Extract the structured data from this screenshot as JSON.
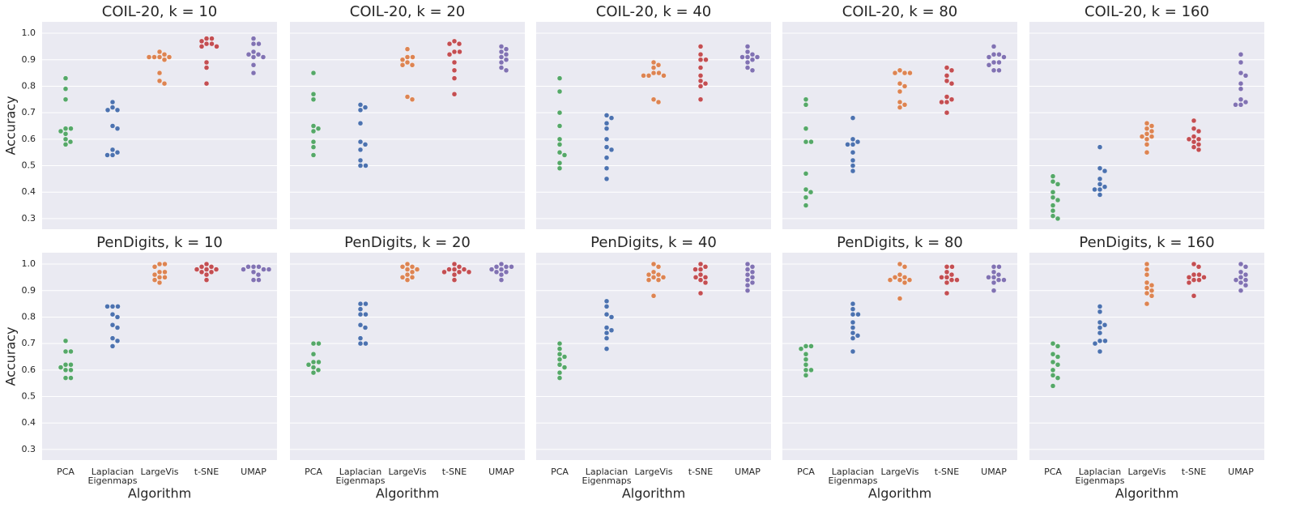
{
  "chart_data": [
    {
      "type": "swarm",
      "title": "COIL-20, k = 10",
      "ylabel": "Accuracy",
      "colors": [
        "#55a868",
        "#4c72b0",
        "#dd8452",
        "#c44e52",
        "#8172b3"
      ],
      "ylim": [
        0.26,
        1.043
      ],
      "yticks": [
        0.3,
        0.4,
        0.5,
        0.6,
        0.7,
        0.8,
        0.9,
        {
          "value": 1,
          "label": "1.0"
        }
      ],
      "values": [
        [
          0.83,
          0.79,
          0.75,
          0.64,
          0.64,
          0.63,
          0.62,
          0.6,
          0.59,
          0.58
        ],
        [
          0.74,
          0.72,
          0.71,
          0.71,
          0.65,
          0.64,
          0.56,
          0.55,
          0.54,
          0.54
        ],
        [
          0.93,
          0.92,
          0.91,
          0.91,
          0.91,
          0.91,
          0.9,
          0.85,
          0.82,
          0.81
        ],
        [
          0.98,
          0.98,
          0.97,
          0.96,
          0.96,
          0.95,
          0.95,
          0.89,
          0.87,
          0.81
        ],
        [
          0.98,
          0.96,
          0.96,
          0.93,
          0.92,
          0.92,
          0.91,
          0.91,
          0.88,
          0.85
        ]
      ]
    },
    {
      "type": "swarm",
      "title": "COIL-20, k = 20",
      "colors": [
        "#55a868",
        "#4c72b0",
        "#dd8452",
        "#c44e52",
        "#8172b3"
      ],
      "ylim": [
        0.26,
        1.043
      ],
      "yticks": [
        0.3,
        0.4,
        0.5,
        0.6,
        0.7,
        0.8,
        0.9,
        1
      ],
      "values": [
        [
          0.85,
          0.77,
          0.75,
          0.65,
          0.64,
          0.63,
          0.59,
          0.57,
          0.54
        ],
        [
          0.73,
          0.72,
          0.71,
          0.66,
          0.59,
          0.58,
          0.56,
          0.52,
          0.5,
          0.5
        ],
        [
          0.94,
          0.91,
          0.91,
          0.9,
          0.89,
          0.88,
          0.88,
          0.76,
          0.75
        ],
        [
          0.97,
          0.96,
          0.96,
          0.93,
          0.93,
          0.92,
          0.89,
          0.86,
          0.83,
          0.77
        ],
        [
          0.95,
          0.94,
          0.93,
          0.92,
          0.91,
          0.9,
          0.89,
          0.87,
          0.86
        ]
      ]
    },
    {
      "type": "swarm",
      "title": "COIL-20, k = 40",
      "colors": [
        "#55a868",
        "#4c72b0",
        "#dd8452",
        "#c44e52",
        "#8172b3"
      ],
      "ylim": [
        0.26,
        1.043
      ],
      "yticks": [
        0.3,
        0.4,
        0.5,
        0.6,
        0.7,
        0.8,
        0.9,
        1
      ],
      "values": [
        [
          0.83,
          0.78,
          0.7,
          0.65,
          0.6,
          0.58,
          0.55,
          0.54,
          0.51,
          0.49
        ],
        [
          0.69,
          0.68,
          0.66,
          0.64,
          0.6,
          0.57,
          0.56,
          0.53,
          0.49,
          0.45
        ],
        [
          0.89,
          0.88,
          0.87,
          0.85,
          0.85,
          0.84,
          0.84,
          0.84,
          0.75,
          0.74
        ],
        [
          0.95,
          0.92,
          0.9,
          0.9,
          0.87,
          0.84,
          0.82,
          0.81,
          0.8,
          0.75
        ],
        [
          0.95,
          0.93,
          0.92,
          0.91,
          0.91,
          0.91,
          0.9,
          0.89,
          0.87,
          0.86
        ]
      ]
    },
    {
      "type": "swarm",
      "title": "COIL-20, k = 80",
      "colors": [
        "#55a868",
        "#4c72b0",
        "#dd8452",
        "#c44e52",
        "#8172b3"
      ],
      "ylim": [
        0.26,
        1.043
      ],
      "yticks": [
        0.3,
        0.4,
        0.5,
        0.6,
        0.7,
        0.8,
        0.9,
        1
      ],
      "values": [
        [
          0.75,
          0.73,
          0.64,
          0.59,
          0.59,
          0.47,
          0.41,
          0.4,
          0.38,
          0.35
        ],
        [
          0.68,
          0.6,
          0.59,
          0.58,
          0.58,
          0.55,
          0.52,
          0.5,
          0.48
        ],
        [
          0.86,
          0.85,
          0.85,
          0.85,
          0.81,
          0.8,
          0.78,
          0.74,
          0.73,
          0.72
        ],
        [
          0.87,
          0.86,
          0.84,
          0.82,
          0.81,
          0.76,
          0.75,
          0.74,
          0.74,
          0.7
        ],
        [
          0.95,
          0.92,
          0.92,
          0.91,
          0.91,
          0.89,
          0.89,
          0.88,
          0.86,
          0.86
        ]
      ]
    },
    {
      "type": "swarm",
      "title": "COIL-20, k = 160",
      "colors": [
        "#55a868",
        "#4c72b0",
        "#dd8452",
        "#c44e52",
        "#8172b3"
      ],
      "ylim": [
        0.26,
        1.043
      ],
      "yticks": [
        0.3,
        0.4,
        0.5,
        0.6,
        0.7,
        0.8,
        0.9,
        1
      ],
      "values": [
        [
          0.46,
          0.44,
          0.43,
          0.4,
          0.38,
          0.37,
          0.35,
          0.33,
          0.31,
          0.3
        ],
        [
          0.57,
          0.49,
          0.48,
          0.45,
          0.43,
          0.42,
          0.41,
          0.41,
          0.39
        ],
        [
          0.66,
          0.65,
          0.64,
          0.63,
          0.62,
          0.61,
          0.61,
          0.6,
          0.58,
          0.55
        ],
        [
          0.67,
          0.64,
          0.63,
          0.61,
          0.6,
          0.6,
          0.59,
          0.58,
          0.57,
          0.56
        ],
        [
          0.92,
          0.89,
          0.85,
          0.84,
          0.81,
          0.79,
          0.75,
          0.74,
          0.73,
          0.73
        ]
      ]
    },
    {
      "type": "swarm",
      "title": "PenDigits, k = 10",
      "ylabel": "Accuracy",
      "xlabel": "Algorithm",
      "categories": [
        "PCA",
        "Laplacian Eigenmaps",
        "LargeVis",
        "t-SNE",
        "UMAP"
      ],
      "colors": [
        "#55a868",
        "#4c72b0",
        "#dd8452",
        "#c44e52",
        "#8172b3"
      ],
      "ylim": [
        0.26,
        1.043
      ],
      "yticks": [
        0.3,
        0.4,
        0.5,
        0.6,
        0.7,
        0.8,
        0.9,
        {
          "value": 1,
          "label": "1.0"
        }
      ],
      "values": [
        [
          0.71,
          0.67,
          0.67,
          0.62,
          0.62,
          0.61,
          0.6,
          0.6,
          0.57,
          0.57
        ],
        [
          0.84,
          0.84,
          0.84,
          0.81,
          0.8,
          0.77,
          0.76,
          0.72,
          0.71,
          0.69
        ],
        [
          1.0,
          1.0,
          0.99,
          0.97,
          0.97,
          0.96,
          0.95,
          0.95,
          0.94,
          0.93
        ],
        [
          1.0,
          0.99,
          0.99,
          0.98,
          0.98,
          0.98,
          0.97,
          0.97,
          0.96,
          0.94
        ],
        [
          0.99,
          0.99,
          0.99,
          0.98,
          0.98,
          0.98,
          0.97,
          0.96,
          0.94,
          0.94
        ]
      ]
    },
    {
      "type": "swarm",
      "title": "PenDigits, k = 20",
      "xlabel": "Algorithm",
      "categories": [
        "PCA",
        "Laplacian Eigenmaps",
        "LargeVis",
        "t-SNE",
        "UMAP"
      ],
      "colors": [
        "#55a868",
        "#4c72b0",
        "#dd8452",
        "#c44e52",
        "#8172b3"
      ],
      "ylim": [
        0.26,
        1.043
      ],
      "yticks": [
        0.3,
        0.4,
        0.5,
        0.6,
        0.7,
        0.8,
        0.9,
        1
      ],
      "values": [
        [
          0.7,
          0.7,
          0.66,
          0.63,
          0.63,
          0.62,
          0.61,
          0.6,
          0.59
        ],
        [
          0.85,
          0.85,
          0.83,
          0.81,
          0.81,
          0.77,
          0.76,
          0.72,
          0.7,
          0.7
        ],
        [
          1.0,
          0.99,
          0.99,
          0.98,
          0.98,
          0.97,
          0.96,
          0.95,
          0.95,
          0.94
        ],
        [
          1.0,
          0.99,
          0.98,
          0.98,
          0.98,
          0.97,
          0.97,
          0.97,
          0.96,
          0.94
        ],
        [
          1.0,
          0.99,
          0.99,
          0.99,
          0.98,
          0.98,
          0.97,
          0.97,
          0.96,
          0.94
        ]
      ]
    },
    {
      "type": "swarm",
      "title": "PenDigits, k = 40",
      "xlabel": "Algorithm",
      "categories": [
        "PCA",
        "Laplacian Eigenmaps",
        "LargeVis",
        "t-SNE",
        "UMAP"
      ],
      "colors": [
        "#55a868",
        "#4c72b0",
        "#dd8452",
        "#c44e52",
        "#8172b3"
      ],
      "ylim": [
        0.26,
        1.043
      ],
      "yticks": [
        0.3,
        0.4,
        0.5,
        0.6,
        0.7,
        0.8,
        0.9,
        1
      ],
      "values": [
        [
          0.7,
          0.68,
          0.66,
          0.65,
          0.64,
          0.62,
          0.61,
          0.59,
          0.57
        ],
        [
          0.86,
          0.84,
          0.81,
          0.8,
          0.76,
          0.75,
          0.74,
          0.72,
          0.68
        ],
        [
          1.0,
          0.99,
          0.97,
          0.96,
          0.96,
          0.95,
          0.95,
          0.94,
          0.94,
          0.88
        ],
        [
          1.0,
          0.99,
          0.98,
          0.98,
          0.96,
          0.95,
          0.95,
          0.94,
          0.93,
          0.89
        ],
        [
          1.0,
          0.99,
          0.98,
          0.97,
          0.96,
          0.95,
          0.94,
          0.93,
          0.92,
          0.9
        ]
      ]
    },
    {
      "type": "swarm",
      "title": "PenDigits, k = 80",
      "xlabel": "Algorithm",
      "categories": [
        "PCA",
        "Laplacian Eigenmaps",
        "LargeVis",
        "t-SNE",
        "UMAP"
      ],
      "colors": [
        "#55a868",
        "#4c72b0",
        "#dd8452",
        "#c44e52",
        "#8172b3"
      ],
      "ylim": [
        0.26,
        1.043
      ],
      "yticks": [
        0.3,
        0.4,
        0.5,
        0.6,
        0.7,
        0.8,
        0.9,
        1
      ],
      "values": [
        [
          0.69,
          0.69,
          0.68,
          0.66,
          0.64,
          0.62,
          0.6,
          0.6,
          0.58
        ],
        [
          0.85,
          0.83,
          0.81,
          0.81,
          0.78,
          0.76,
          0.74,
          0.73,
          0.72,
          0.67
        ],
        [
          1.0,
          0.99,
          0.96,
          0.95,
          0.95,
          0.94,
          0.94,
          0.94,
          0.93,
          0.87
        ],
        [
          0.99,
          0.99,
          0.97,
          0.96,
          0.95,
          0.95,
          0.94,
          0.94,
          0.93,
          0.89
        ],
        [
          0.99,
          0.99,
          0.97,
          0.96,
          0.95,
          0.95,
          0.94,
          0.94,
          0.93,
          0.9
        ]
      ]
    },
    {
      "type": "swarm",
      "title": "PenDigits, k = 160",
      "xlabel": "Algorithm",
      "categories": [
        "PCA",
        "Laplacian Eigenmaps",
        "LargeVis",
        "t-SNE",
        "UMAP"
      ],
      "colors": [
        "#55a868",
        "#4c72b0",
        "#dd8452",
        "#c44e52",
        "#8172b3"
      ],
      "ylim": [
        0.26,
        1.043
      ],
      "yticks": [
        0.3,
        0.4,
        0.5,
        0.6,
        0.7,
        0.8,
        0.9,
        1
      ],
      "values": [
        [
          0.7,
          0.69,
          0.66,
          0.65,
          0.63,
          0.62,
          0.6,
          0.58,
          0.57,
          0.54
        ],
        [
          0.84,
          0.82,
          0.78,
          0.77,
          0.76,
          0.74,
          0.71,
          0.71,
          0.7,
          0.67
        ],
        [
          1.0,
          0.98,
          0.96,
          0.93,
          0.92,
          0.91,
          0.9,
          0.89,
          0.88,
          0.85
        ],
        [
          1.0,
          0.99,
          0.96,
          0.96,
          0.95,
          0.95,
          0.94,
          0.94,
          0.93,
          0.88
        ],
        [
          1.0,
          0.99,
          0.97,
          0.96,
          0.95,
          0.94,
          0.94,
          0.93,
          0.92,
          0.9
        ]
      ]
    }
  ]
}
